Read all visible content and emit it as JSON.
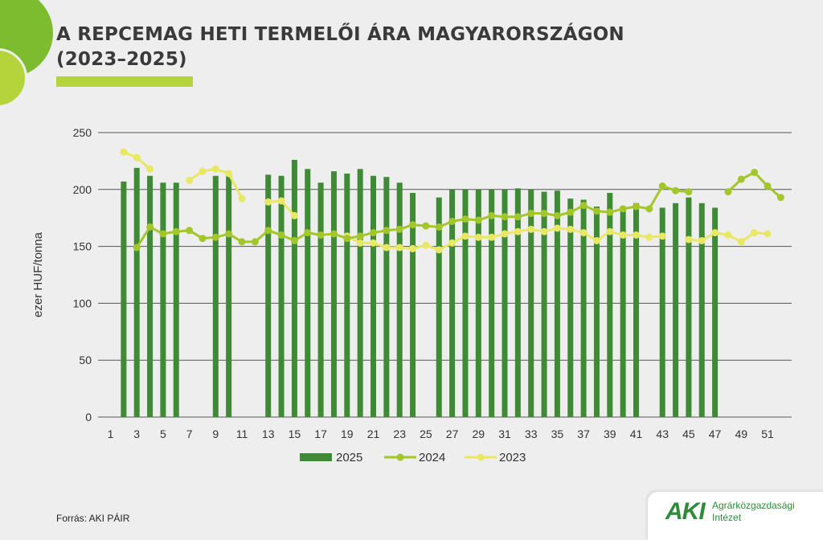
{
  "header": {
    "title_line1": "A REPCEMAG HETI TERMELŐI ÁRA MAGYARORSZÁGON",
    "title_line2": "(2023–2025)"
  },
  "footer": {
    "source": "Forrás: AKI PÁIR",
    "logo_mark": "AKI",
    "logo_line1": "Agrárközgazdasági",
    "logo_line2": "Intézet"
  },
  "colors": {
    "bar_2025": "#3f8a35",
    "line_2024": "#a3c62b",
    "line_2023": "#e8e865",
    "grid": "#555555",
    "text": "#333333"
  },
  "chart_data": {
    "type": "bar",
    "title": "A REPCEMAG HETI TERMELŐI ÁRA MAGYARORSZÁGON (2023–2025)",
    "xlabel": "",
    "ylabel": "ezer HUF/tonna",
    "ylim": [
      0,
      250
    ],
    "yticks": [
      0,
      50,
      100,
      150,
      200,
      250
    ],
    "xlim": [
      1,
      52
    ],
    "xticks": [
      1,
      3,
      5,
      7,
      9,
      11,
      13,
      15,
      17,
      19,
      21,
      23,
      25,
      27,
      29,
      31,
      33,
      35,
      37,
      39,
      41,
      43,
      45,
      47,
      49,
      51
    ],
    "grid": true,
    "legend_position": "bottom",
    "series": [
      {
        "name": "2025",
        "kind": "bar",
        "values": [
          null,
          207,
          219,
          212,
          206,
          206,
          null,
          null,
          212,
          215,
          null,
          null,
          213,
          212,
          226,
          218,
          206,
          216,
          214,
          218,
          212,
          211,
          206,
          197,
          null,
          193,
          200,
          200,
          200,
          200,
          200,
          201,
          200,
          198,
          199,
          192,
          191,
          185,
          197,
          185,
          188,
          null,
          184,
          188,
          193,
          188,
          184,
          null,
          null,
          null,
          null,
          null
        ]
      },
      {
        "name": "2024",
        "kind": "line",
        "values": [
          null,
          null,
          149,
          167,
          161,
          163,
          164,
          157,
          158,
          161,
          154,
          154,
          164,
          160,
          155,
          162,
          160,
          161,
          157,
          159,
          162,
          164,
          165,
          169,
          168,
          167,
          172,
          174,
          173,
          177,
          176,
          176,
          179,
          179,
          177,
          180,
          186,
          181,
          180,
          183,
          185,
          183,
          203,
          199,
          198,
          null,
          null,
          198,
          209,
          215,
          203,
          193
        ]
      },
      {
        "name": "2023",
        "kind": "line",
        "values": [
          null,
          233,
          228,
          218,
          null,
          null,
          208,
          216,
          218,
          214,
          192,
          null,
          189,
          190,
          177,
          null,
          null,
          null,
          159,
          153,
          153,
          149,
          149,
          148,
          151,
          147,
          153,
          159,
          158,
          158,
          161,
          163,
          165,
          163,
          166,
          165,
          162,
          155,
          163,
          160,
          160,
          158,
          159,
          null,
          156,
          155,
          162,
          160,
          154,
          162,
          161,
          null
        ]
      }
    ]
  }
}
